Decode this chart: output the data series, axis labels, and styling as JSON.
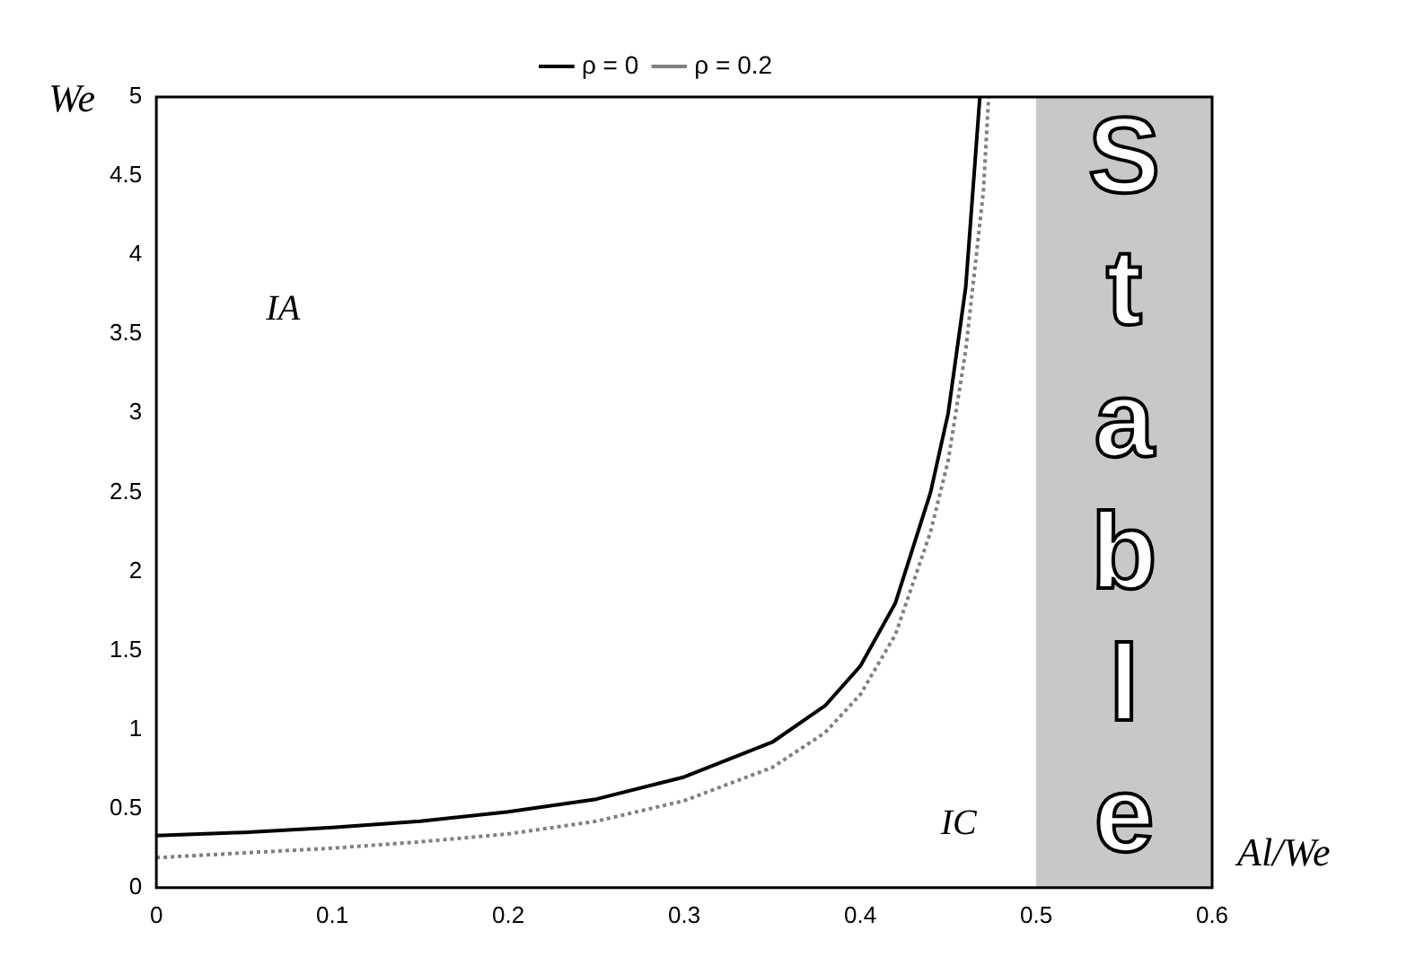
{
  "chart_data": {
    "type": "line",
    "xlabel": "Al/We",
    "ylabel": "We",
    "xlim": [
      0,
      0.6
    ],
    "xticks": [
      0,
      0.1,
      0.2,
      0.3,
      0.4,
      0.5,
      0.6
    ],
    "ylim": [
      0,
      5
    ],
    "yticks": [
      0,
      0.5,
      1,
      1.5,
      2,
      2.5,
      3,
      3.5,
      4,
      4.5,
      5
    ],
    "grid": false,
    "legend": "top",
    "marker": "none",
    "series": [
      {
        "name": "ρ = 0",
        "color": "#000000",
        "line_style": "solid",
        "x": [
          0,
          0.05,
          0.1,
          0.15,
          0.2,
          0.25,
          0.3,
          0.35,
          0.38,
          0.4,
          0.42,
          0.44,
          0.45,
          0.46,
          0.468
        ],
        "values": [
          0.33,
          0.35,
          0.38,
          0.42,
          0.48,
          0.56,
          0.7,
          0.92,
          1.15,
          1.4,
          1.8,
          2.5,
          3.0,
          3.8,
          5
        ]
      },
      {
        "name": "ρ = 0.2",
        "color": "#808080",
        "line_style": "dotted",
        "x": [
          0,
          0.05,
          0.1,
          0.15,
          0.2,
          0.25,
          0.3,
          0.35,
          0.38,
          0.4,
          0.42,
          0.44,
          0.45,
          0.46,
          0.47,
          0.473
        ],
        "values": [
          0.19,
          0.22,
          0.25,
          0.29,
          0.34,
          0.42,
          0.55,
          0.76,
          0.98,
          1.22,
          1.6,
          2.25,
          2.7,
          3.4,
          4.4,
          5
        ]
      }
    ],
    "bands": [
      {
        "axis": "x",
        "from": 0.5,
        "to": 0.6,
        "label": "Stable",
        "color": "#c8c8c8"
      }
    ],
    "annotations": [
      "IA",
      "IC"
    ]
  }
}
